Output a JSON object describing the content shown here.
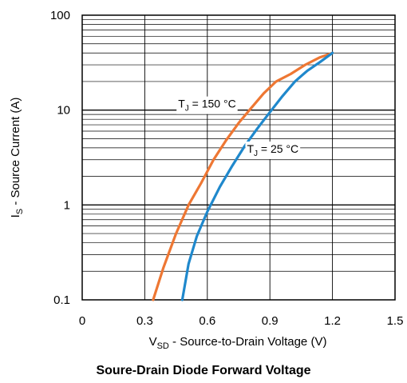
{
  "chart_data": {
    "type": "line",
    "title": "Soure-Drain Diode Forward Voltage",
    "xlabel": {
      "main": "V",
      "sub": "SD",
      "rest": " - Source-to-Drain Voltage (V)"
    },
    "ylabel": {
      "main": "I",
      "sub": "S",
      "rest": " - Source Current (A)"
    },
    "xlim": [
      0,
      1.5
    ],
    "ylim": [
      0.1,
      100
    ],
    "yscale": "log",
    "grid": true,
    "x_ticks": [
      "0",
      "0.3",
      "0.6",
      "0.9",
      "1.2",
      "1.5"
    ],
    "x_tick_values": [
      0,
      0.3,
      0.6,
      0.9,
      1.2,
      1.5
    ],
    "y_ticks": [
      "0.1",
      "1",
      "10",
      "100"
    ],
    "y_tick_values": [
      0.1,
      1,
      10,
      100
    ],
    "series": [
      {
        "name": {
          "main": "T",
          "sub": "J",
          "rest": " = 150 °C"
        },
        "color": "#ee7733",
        "x": [
          0.34,
          0.39,
          0.45,
          0.51,
          0.57,
          0.63,
          0.69,
          0.75,
          0.81,
          0.87,
          0.93,
          1.0,
          1.07,
          1.14,
          1.2
        ],
        "y": [
          0.1,
          0.22,
          0.5,
          1.0,
          1.7,
          3.0,
          4.8,
          7.3,
          10.5,
          15.0,
          20.0,
          24.0,
          30.0,
          36.0,
          40.0
        ]
      },
      {
        "name": {
          "main": "T",
          "sub": "J",
          "rest": " = 25 °C"
        },
        "color": "#1f88cc",
        "x": [
          0.48,
          0.51,
          0.55,
          0.6,
          0.66,
          0.72,
          0.78,
          0.84,
          0.9,
          0.96,
          1.02,
          1.08,
          1.14,
          1.2
        ],
        "y": [
          0.1,
          0.24,
          0.47,
          0.85,
          1.55,
          2.6,
          4.2,
          6.4,
          9.5,
          14.0,
          20.0,
          26.0,
          32.0,
          40.0
        ]
      }
    ]
  }
}
